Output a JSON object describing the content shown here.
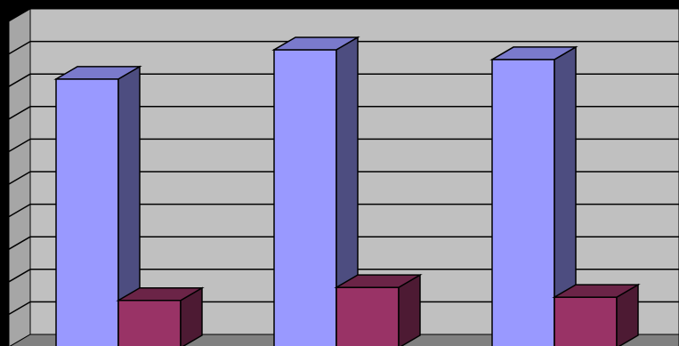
{
  "chart_data": {
    "type": "bar",
    "style": "3d-clustered-column",
    "title": "",
    "xlabel": "",
    "ylabel": "",
    "grid": true,
    "ylim": [
      0,
      10
    ],
    "categories": [
      "",
      "",
      ""
    ],
    "series": [
      {
        "values": [
          8.2,
          9.1,
          8.8
        ],
        "color": "#9999FF",
        "side_color": "#4D4D80",
        "top_color": "#7A7ACC"
      },
      {
        "values": [
          1.4,
          1.8,
          1.5
        ],
        "color": "#993366",
        "side_color": "#4D1A33",
        "top_color": "#6B2447"
      }
    ],
    "colors": {
      "background": "#000000",
      "plot_back": "#C0C0C0",
      "plot_side": "#A6A6A6",
      "floor": "#808080",
      "gridline": "#000000"
    }
  }
}
